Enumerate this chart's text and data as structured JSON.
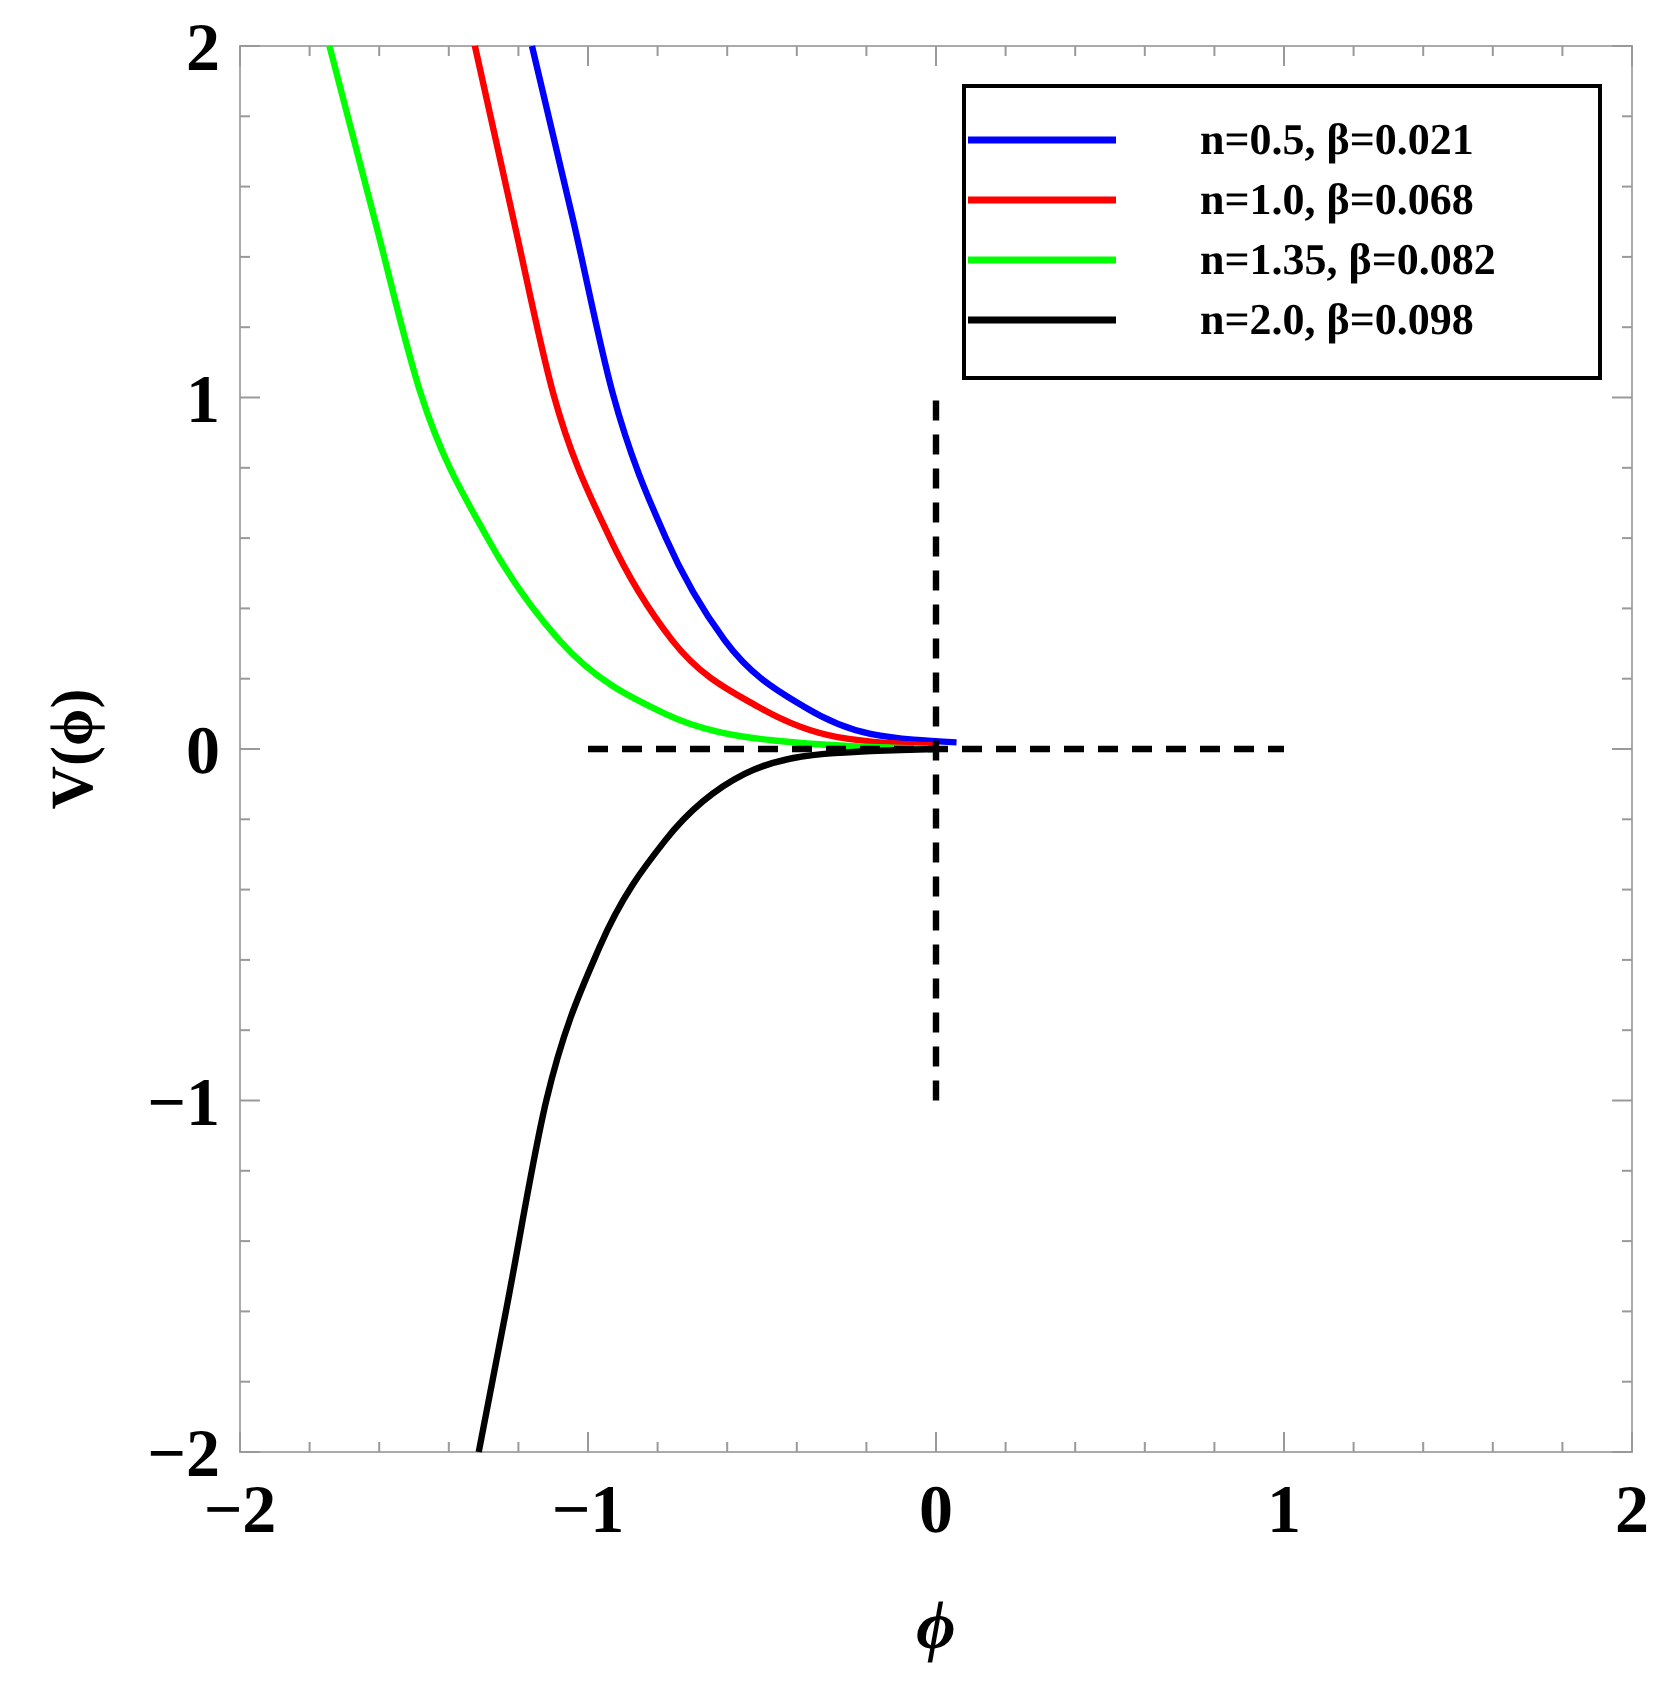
{
  "chart_data": {
    "type": "line",
    "xlabel": "ϕ",
    "ylabel": "V(ϕ)",
    "xlim": [
      -2,
      2
    ],
    "ylim": [
      -2,
      2
    ],
    "xticks": [
      -2,
      {
        "value": -1.8,
        "label": null
      },
      {
        "value": -1.6,
        "label": null
      },
      {
        "value": -1.4,
        "label": null
      },
      {
        "value": -1.2,
        "label": null
      },
      -1,
      {
        "value": -0.8,
        "label": null
      },
      {
        "value": -0.6,
        "label": null
      },
      {
        "value": -0.4,
        "label": null
      },
      {
        "value": -0.2,
        "label": null
      },
      0,
      {
        "value": 0.2,
        "label": null
      },
      {
        "value": 0.4,
        "label": null
      },
      {
        "value": 0.6,
        "label": null
      },
      {
        "value": 0.8,
        "label": null
      },
      1,
      {
        "value": 1.2,
        "label": null
      },
      {
        "value": 1.4,
        "label": null
      },
      {
        "value": 1.6,
        "label": null
      },
      {
        "value": 1.8,
        "label": null
      },
      2
    ],
    "yticks": [
      -2,
      {
        "value": -1.8,
        "label": null
      },
      {
        "value": -1.6,
        "label": null
      },
      {
        "value": -1.4,
        "label": null
      },
      {
        "value": -1.2,
        "label": null
      },
      -1,
      {
        "value": -0.8,
        "label": null
      },
      {
        "value": -0.6,
        "label": null
      },
      {
        "value": -0.4,
        "label": null
      },
      {
        "value": -0.2,
        "label": null
      },
      0,
      {
        "value": 0.2,
        "label": null
      },
      {
        "value": 0.4,
        "label": null
      },
      {
        "value": 0.6,
        "label": null
      },
      {
        "value": 0.8,
        "label": null
      },
      1,
      {
        "value": 1.2,
        "label": null
      },
      {
        "value": 1.4,
        "label": null
      },
      {
        "value": 1.6,
        "label": null
      },
      {
        "value": 1.8,
        "label": null
      },
      2
    ],
    "legend": "top right",
    "grid": false,
    "series": [
      {
        "name": "n=0.5, β=0.021",
        "color": "#0000ff",
        "x": [
          -1.161,
          -1.043,
          -0.929,
          -0.778,
          -0.607,
          -0.379,
          -0.188,
          0.059
        ],
        "values": [
          2,
          1.506,
          1.012,
          0.604,
          0.309,
          0.12,
          0.043,
          0.019
        ]
      },
      {
        "name": "n=1.0, β=0.068",
        "color": "#ff0000",
        "x": [
          -1.325,
          -1.214,
          -1.1,
          -0.939,
          -0.758,
          -0.511,
          -0.283,
          0
        ],
        "values": [
          2,
          1.506,
          1.012,
          0.604,
          0.309,
          0.12,
          0.034,
          0.01
        ]
      },
      {
        "name": "n=1.35, β=0.082",
        "color": "#00ff00",
        "x": [
          -1.743,
          -1.613,
          -1.481,
          -1.291,
          -1.082,
          -0.778,
          -0.473,
          0
        ],
        "values": [
          2,
          1.506,
          1.012,
          0.604,
          0.309,
          0.1,
          0.025,
          0
        ]
      },
      {
        "name": "n=2.0, β=0.098",
        "color": "#000000",
        "x": [
          -1.314,
          -1.234,
          -1.12,
          -0.967,
          -0.778,
          -0.55,
          -0.321,
          0
        ],
        "values": [
          -2,
          -1.59,
          -1.001,
          -0.564,
          -0.26,
          -0.071,
          -0.014,
          0
        ]
      },
      {
        "color": "#000000",
        "line_style": "dashed",
        "x": [
          -1,
          1
        ],
        "values": [
          0,
          0
        ]
      },
      {
        "color": "#000000",
        "line_style": "dashed",
        "x": [
          0,
          0
        ],
        "values": [
          -1,
          1
        ]
      }
    ]
  }
}
